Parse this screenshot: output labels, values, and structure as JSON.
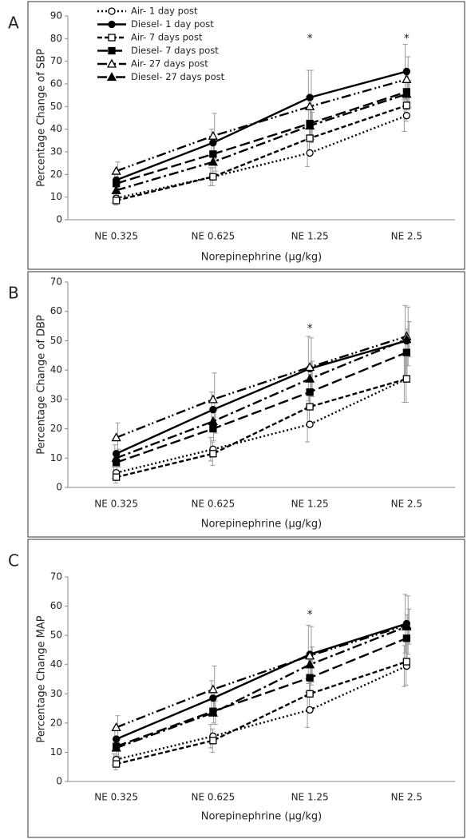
{
  "chart_data": [
    {
      "type": "line",
      "panel_label": "A",
      "ylabel": "Percentage Change of SBP",
      "xlabel": "Norepinephrine (µg/kg)",
      "categories": [
        "NE 0.325",
        "NE 0.625",
        "NE 1.25",
        "NE 2.5"
      ],
      "ylim": [
        0,
        90
      ],
      "yticks": [
        0,
        10,
        20,
        30,
        40,
        50,
        60,
        70,
        80,
        90
      ],
      "legend": "upper left",
      "error_color": "#999999",
      "annotations": [
        {
          "text": "*",
          "x": "NE 1.25",
          "y": 80
        },
        {
          "text": "*",
          "x": "NE 2.5",
          "y": 80
        }
      ],
      "series": [
        {
          "name": "Air- 1 day post",
          "color": "#000000",
          "dash": "dotted",
          "marker": "circle",
          "filled": false,
          "values": [
            9.5,
            19,
            29.5,
            46
          ],
          "errors": [
            2,
            4,
            6,
            7
          ]
        },
        {
          "name": "Diesel- 1 day post",
          "color": "#000000",
          "dash": "solid",
          "marker": "circle",
          "filled": true,
          "values": [
            17.5,
            34,
            54,
            65.5
          ],
          "errors": [
            3,
            6,
            12,
            12
          ]
        },
        {
          "name": "Air- 7 days post",
          "color": "#000000",
          "dash": "dashed",
          "marker": "square",
          "filled": false,
          "values": [
            8.5,
            19,
            36,
            50.5
          ],
          "errors": [
            2,
            4,
            6,
            7
          ]
        },
        {
          "name": "Diesel- 7 days post",
          "color": "#000000",
          "dash": "longdash",
          "marker": "square",
          "filled": true,
          "values": [
            16,
            29,
            42.5,
            56.5
          ],
          "errors": [
            3,
            4,
            6,
            8
          ]
        },
        {
          "name": "Air- 27 days post",
          "color": "#000000",
          "dash": "dashdotdot",
          "marker": "triangle",
          "filled": false,
          "values": [
            21.5,
            37,
            50,
            62
          ],
          "errors": [
            4,
            10,
            16,
            10
          ]
        },
        {
          "name": "Diesel- 27 days post",
          "color": "#000000",
          "dash": "dashdot",
          "marker": "triangle",
          "filled": true,
          "values": [
            13,
            25.5,
            41.5,
            55.5
          ],
          "errors": [
            3,
            4,
            6,
            6
          ]
        }
      ]
    },
    {
      "type": "line",
      "panel_label": "B",
      "ylabel": "Percentage Change of DBP",
      "xlabel": "Norepinephrine (µg/kg)",
      "categories": [
        "NE 0.325",
        "NE 0.625",
        "NE 1.25",
        "NE 2.5"
      ],
      "ylim": [
        0,
        70
      ],
      "yticks": [
        0,
        10,
        20,
        30,
        40,
        50,
        60,
        70
      ],
      "error_color": "#999999",
      "annotations": [
        {
          "text": "*",
          "x": "NE 1.25",
          "y": 54
        }
      ],
      "series": [
        {
          "color": "#000000",
          "dash": "dotted",
          "marker": "circle",
          "filled": false,
          "values": [
            5,
            13,
            21.5,
            37
          ],
          "errors": [
            2,
            4,
            6,
            8
          ]
        },
        {
          "color": "#000000",
          "dash": "solid",
          "marker": "circle",
          "filled": true,
          "values": [
            11.5,
            26.5,
            40.5,
            50
          ],
          "errors": [
            3,
            6,
            11,
            12
          ]
        },
        {
          "color": "#000000",
          "dash": "dashed",
          "marker": "square",
          "filled": false,
          "values": [
            3.5,
            11.5,
            27.5,
            37
          ],
          "errors": [
            2,
            4,
            6,
            8
          ]
        },
        {
          "color": "#000000",
          "dash": "longdash",
          "marker": "square",
          "filled": true,
          "values": [
            8.5,
            20,
            32.5,
            46
          ],
          "errors": [
            3,
            4,
            6,
            8
          ]
        },
        {
          "color": "#000000",
          "dash": "dashdotdot",
          "marker": "triangle",
          "filled": false,
          "values": [
            17,
            30,
            41,
            51.5
          ],
          "errors": [
            5,
            9,
            10,
            10
          ]
        },
        {
          "color": "#000000",
          "dash": "dashdot",
          "marker": "triangle",
          "filled": true,
          "values": [
            10,
            22.5,
            37,
            50.5
          ],
          "errors": [
            3,
            4,
            6,
            6
          ]
        }
      ]
    },
    {
      "type": "line",
      "panel_label": "C",
      "ylabel": "Percentage Change MAP",
      "xlabel": "Norepinephrine (µg/kg)",
      "categories": [
        "NE 0.325",
        "NE 0.625",
        "NE 1.25",
        "NE 2.5"
      ],
      "ylim": [
        0,
        70
      ],
      "yticks": [
        0,
        10,
        20,
        30,
        40,
        50,
        60,
        70
      ],
      "error_color": "#999999",
      "annotations": [
        {
          "text": "*",
          "x": "NE 1.25",
          "y": 57
        }
      ],
      "series": [
        {
          "color": "#000000",
          "dash": "dotted",
          "marker": "circle",
          "filled": false,
          "values": [
            7.5,
            15.5,
            24.5,
            39.5
          ],
          "errors": [
            2,
            4,
            6,
            7
          ]
        },
        {
          "color": "#000000",
          "dash": "solid",
          "marker": "circle",
          "filled": true,
          "values": [
            14.5,
            28.5,
            43.5,
            54
          ],
          "errors": [
            3,
            6,
            10,
            10
          ]
        },
        {
          "color": "#000000",
          "dash": "dashed",
          "marker": "square",
          "filled": false,
          "values": [
            6,
            14,
            30,
            41
          ],
          "errors": [
            2,
            4,
            6,
            8
          ]
        },
        {
          "color": "#000000",
          "dash": "longdash",
          "marker": "square",
          "filled": true,
          "values": [
            12,
            24,
            35.5,
            49
          ],
          "errors": [
            3,
            4,
            6,
            8
          ]
        },
        {
          "color": "#000000",
          "dash": "dashdotdot",
          "marker": "triangle",
          "filled": false,
          "values": [
            18.5,
            31.5,
            43,
            53.5
          ],
          "errors": [
            4,
            8,
            10,
            10
          ]
        },
        {
          "color": "#000000",
          "dash": "dashdot",
          "marker": "triangle",
          "filled": true,
          "values": [
            11.5,
            23.5,
            40,
            53
          ],
          "errors": [
            3,
            4,
            6,
            6
          ]
        }
      ]
    }
  ]
}
